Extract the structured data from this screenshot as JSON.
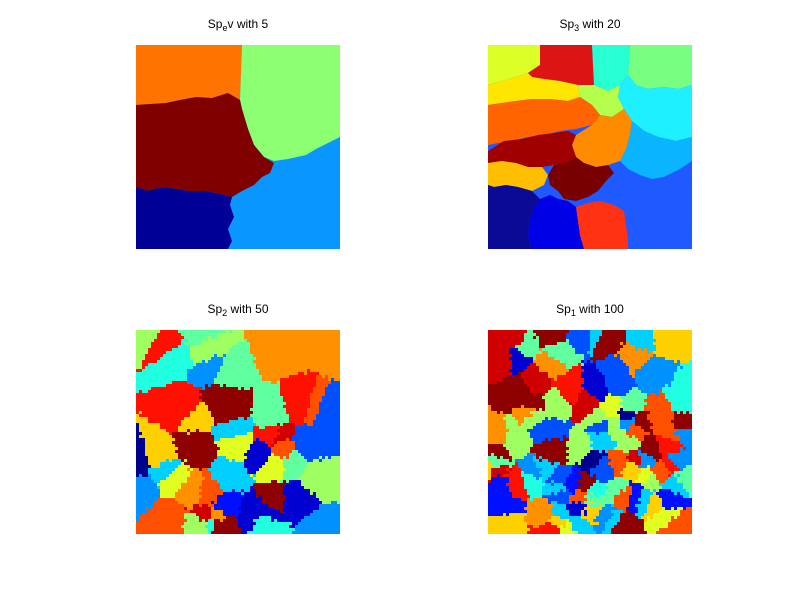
{
  "panels": [
    {
      "title": {
        "base": "Sp",
        "sub": "e",
        "rest": "v with 5"
      }
    },
    {
      "title": {
        "base": "Sp",
        "sub": "3",
        "rest": " with 20"
      }
    },
    {
      "title": {
        "base": "Sp",
        "sub": "2",
        "rest": " with 50"
      }
    },
    {
      "title": {
        "base": "Sp",
        "sub": "1",
        "rest": " with 100"
      }
    }
  ],
  "colormap": "jet"
}
